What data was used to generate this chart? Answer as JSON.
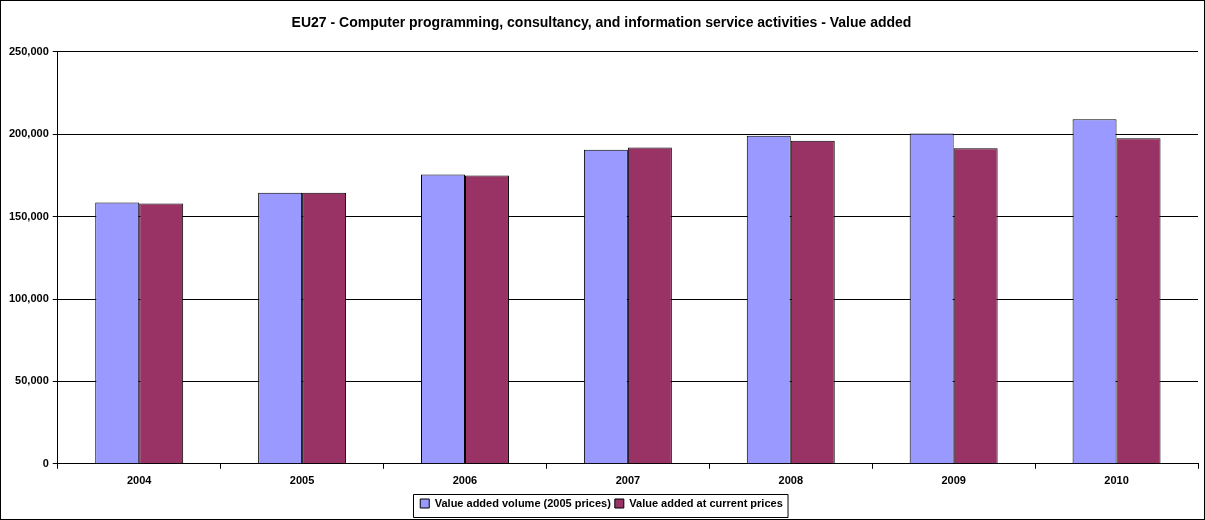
{
  "chart_data": {
    "type": "bar",
    "title": "EU27 - Computer programming, consultancy, and information service activities - Value added",
    "categories": [
      "2004",
      "2005",
      "2006",
      "2007",
      "2008",
      "2009",
      "2010"
    ],
    "series": [
      {
        "name": "Value added volume (2005 prices)",
        "color": "#9999ff",
        "values": [
          158500,
          164500,
          175500,
          190500,
          199000,
          200500,
          209000
        ]
      },
      {
        "name": "Value added at current prices",
        "color": "#993366",
        "values": [
          158000,
          164500,
          175000,
          192000,
          196000,
          191500,
          197500
        ]
      }
    ],
    "ylim": [
      0,
      250000
    ],
    "yticks": [
      0,
      {
        "value": 50000,
        "label": "50,000"
      },
      {
        "value": 100000,
        "label": "100,000"
      },
      {
        "value": 150000,
        "label": "150,000"
      },
      {
        "value": 200000,
        "label": "200,000"
      },
      {
        "value": 250000,
        "label": "250,000"
      }
    ],
    "grid": "y",
    "legend": "bottom"
  }
}
